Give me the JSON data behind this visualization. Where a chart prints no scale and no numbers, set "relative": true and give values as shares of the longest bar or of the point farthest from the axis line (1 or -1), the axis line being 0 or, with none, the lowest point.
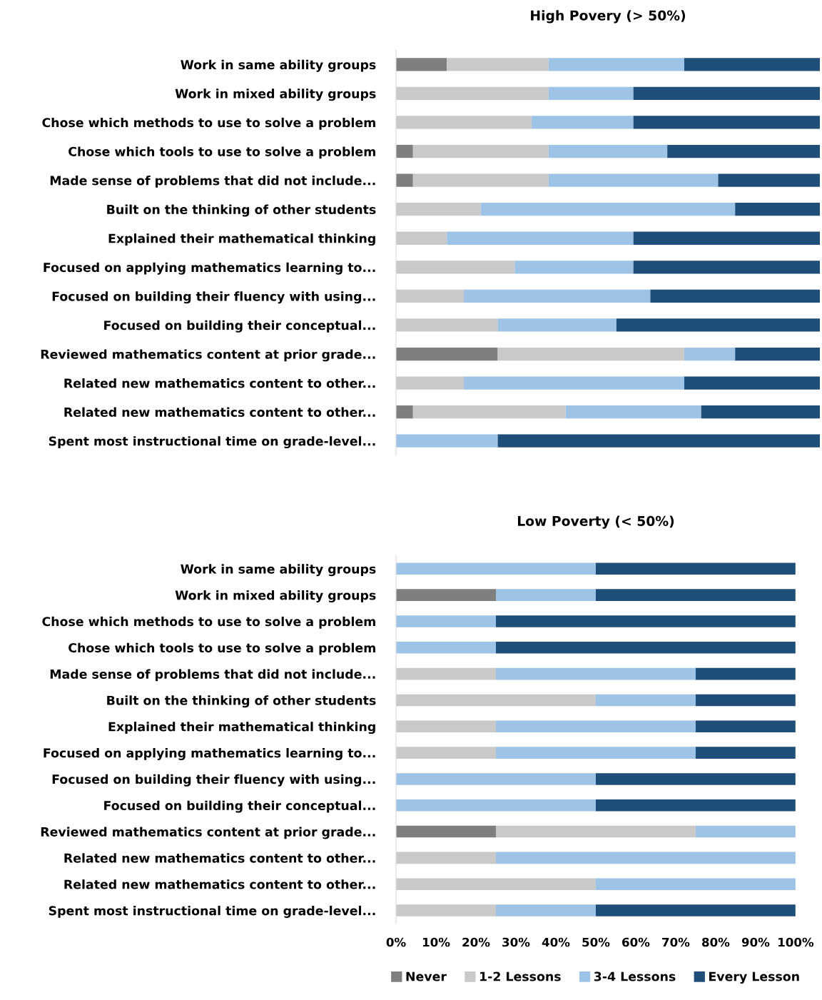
{
  "chart_data": [
    {
      "type": "bar",
      "orientation": "horizontal",
      "stacked": true,
      "relative": true,
      "title": "High Povery (> 50%)",
      "tick_labels": "y",
      "grid": false,
      "legend": false,
      "categories": [
        "Work in same ability groups",
        "Work in mixed ability groups",
        "Chose which methods to use to solve a problem",
        "Chose which tools to use to solve a problem",
        "Made sense of problems that did not include...",
        "Built on the thinking of other students",
        "Explained their mathematical thinking",
        "Focused on applying mathematics learning to...",
        "Focused on building their fluency with using...",
        "Focused on building their conceptual...",
        "Reviewed mathematics content at prior grade...",
        "Related new mathematics content to other...",
        "Related new mathematics content to other...",
        "Spent most instructional time on grade-level..."
      ],
      "series": [
        {
          "color": "#7f7f7f",
          "values": [
            0.12,
            0,
            0,
            0.04,
            0.04,
            0,
            0,
            0,
            0,
            0,
            0.24,
            0,
            0.04,
            0
          ]
        },
        {
          "color": "#c9c9c9",
          "values": [
            0.24,
            0.36,
            0.32,
            0.32,
            0.32,
            0.2,
            0.12,
            0.28,
            0.16,
            0.24,
            0.44,
            0.16,
            0.36,
            0
          ]
        },
        {
          "color": "#9dc3e6",
          "values": [
            0.32,
            0.2,
            0.24,
            0.28,
            0.4,
            0.6,
            0.44,
            0.28,
            0.44,
            0.28,
            0.12,
            0.52,
            0.32,
            0.24
          ]
        },
        {
          "color": "#1f4e79",
          "values": [
            0.32,
            0.44,
            0.44,
            0.36,
            0.24,
            0.2,
            0.44,
            0.44,
            0.4,
            0.48,
            0.2,
            0.32,
            0.28,
            0.76
          ]
        }
      ]
    },
    {
      "type": "bar",
      "orientation": "horizontal",
      "stacked": true,
      "title": "Low Poverty (< 50%)",
      "grid": false,
      "legend": "bottom",
      "categories": [
        "Work in same ability groups",
        "Work in mixed ability groups",
        "Chose which methods to use to solve a problem",
        "Chose which tools to use to solve a problem",
        "Made sense of problems that did not include...",
        "Built on the thinking of other students",
        "Explained their mathematical thinking",
        "Focused on applying mathematics learning to...",
        "Focused on building their fluency with using...",
        "Focused on building their conceptual...",
        "Reviewed mathematics content at prior grade...",
        "Related new mathematics content to other...",
        "Related new mathematics content to other...",
        "Spent most instructional time on grade-level..."
      ],
      "xlim": [
        0,
        100
      ],
      "xticks": [
        {
          "value": 0,
          "label": "0%"
        },
        {
          "value": 10,
          "label": "10%"
        },
        {
          "value": 20,
          "label": "20%"
        },
        {
          "value": 30,
          "label": "30%"
        },
        {
          "value": 40,
          "label": "40%"
        },
        {
          "value": 50,
          "label": "50%"
        },
        {
          "value": 60,
          "label": "60%"
        },
        {
          "value": 70,
          "label": "70%"
        },
        {
          "value": 80,
          "label": "80%"
        },
        {
          "value": 90,
          "label": "90%"
        },
        {
          "value": 100,
          "label": "100%"
        }
      ],
      "series": [
        {
          "name": "Never",
          "color": "#7f7f7f",
          "values": [
            0,
            25,
            0,
            0,
            0,
            0,
            0,
            0,
            0,
            0,
            25,
            0,
            0,
            0
          ]
        },
        {
          "name": "1-2 Lessons",
          "color": "#c9c9c9",
          "values": [
            0,
            0,
            0,
            0,
            25,
            50,
            25,
            25,
            0,
            0,
            50,
            25,
            50,
            25
          ]
        },
        {
          "name": "3-4 Lessons",
          "color": "#9dc3e6",
          "values": [
            50,
            25,
            25,
            25,
            50,
            25,
            50,
            50,
            50,
            50,
            25,
            75,
            50,
            25
          ]
        },
        {
          "name": "Every Lesson",
          "color": "#1f4e79",
          "values": [
            50,
            50,
            75,
            75,
            25,
            25,
            25,
            25,
            50,
            50,
            0,
            0,
            0,
            50
          ]
        }
      ]
    }
  ]
}
